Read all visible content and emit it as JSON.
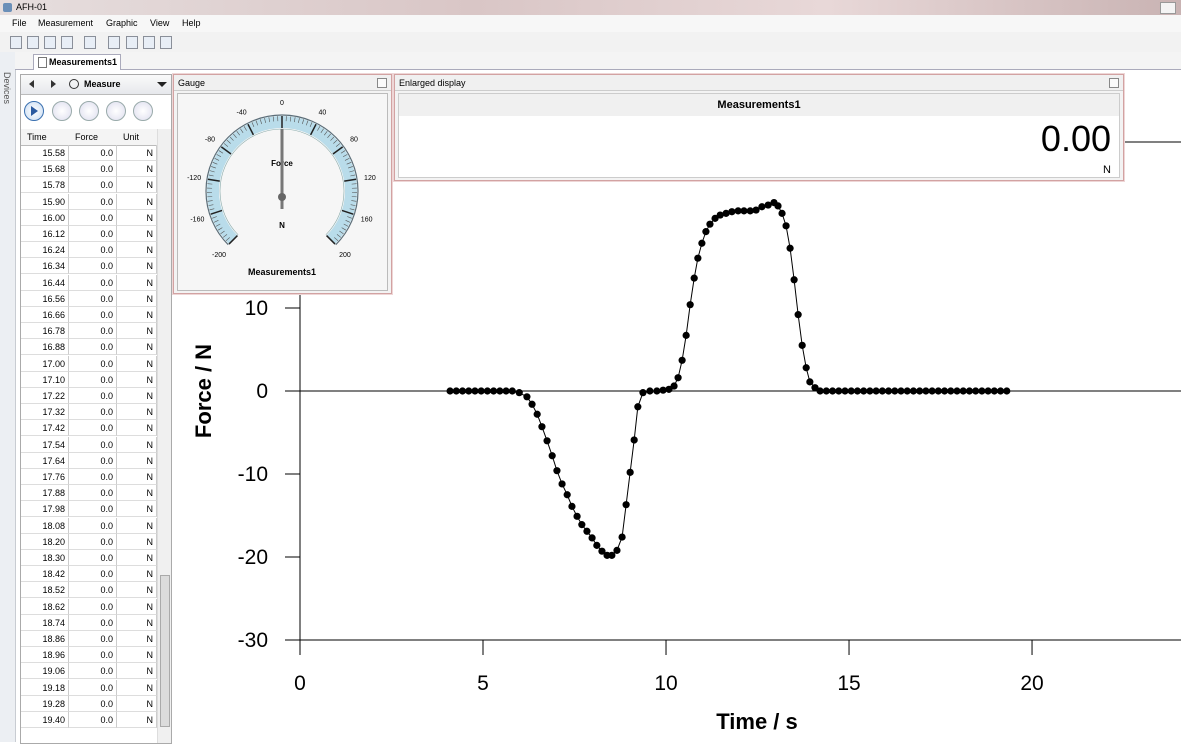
{
  "window": {
    "title": "AFH-01"
  },
  "menu": [
    "File",
    "Measurement",
    "Graphic",
    "View",
    "Help"
  ],
  "sidebar": {
    "label": "Devices"
  },
  "tab": "Measurements1",
  "panel": {
    "mode": "Measure",
    "columns": [
      "Time",
      "Force",
      "Unit"
    ],
    "rows": [
      [
        "15.58",
        "0.0",
        "N"
      ],
      [
        "15.68",
        "0.0",
        "N"
      ],
      [
        "15.78",
        "0.0",
        "N"
      ],
      [
        "15.90",
        "0.0",
        "N"
      ],
      [
        "16.00",
        "0.0",
        "N"
      ],
      [
        "16.12",
        "0.0",
        "N"
      ],
      [
        "16.24",
        "0.0",
        "N"
      ],
      [
        "16.34",
        "0.0",
        "N"
      ],
      [
        "16.44",
        "0.0",
        "N"
      ],
      [
        "16.56",
        "0.0",
        "N"
      ],
      [
        "16.66",
        "0.0",
        "N"
      ],
      [
        "16.78",
        "0.0",
        "N"
      ],
      [
        "16.88",
        "0.0",
        "N"
      ],
      [
        "17.00",
        "0.0",
        "N"
      ],
      [
        "17.10",
        "0.0",
        "N"
      ],
      [
        "17.22",
        "0.0",
        "N"
      ],
      [
        "17.32",
        "0.0",
        "N"
      ],
      [
        "17.42",
        "0.0",
        "N"
      ],
      [
        "17.54",
        "0.0",
        "N"
      ],
      [
        "17.64",
        "0.0",
        "N"
      ],
      [
        "17.76",
        "0.0",
        "N"
      ],
      [
        "17.88",
        "0.0",
        "N"
      ],
      [
        "17.98",
        "0.0",
        "N"
      ],
      [
        "18.08",
        "0.0",
        "N"
      ],
      [
        "18.20",
        "0.0",
        "N"
      ],
      [
        "18.30",
        "0.0",
        "N"
      ],
      [
        "18.42",
        "0.0",
        "N"
      ],
      [
        "18.52",
        "0.0",
        "N"
      ],
      [
        "18.62",
        "0.0",
        "N"
      ],
      [
        "18.74",
        "0.0",
        "N"
      ],
      [
        "18.86",
        "0.0",
        "N"
      ],
      [
        "18.96",
        "0.0",
        "N"
      ],
      [
        "19.06",
        "0.0",
        "N"
      ],
      [
        "19.18",
        "0.0",
        "N"
      ],
      [
        "19.28",
        "0.0",
        "N"
      ],
      [
        "19.40",
        "0.0",
        "N"
      ]
    ]
  },
  "gauge": {
    "title": "Gauge",
    "ticks": [
      -200,
      -160,
      -120,
      -80,
      -40,
      0,
      40,
      80,
      120,
      160,
      200
    ],
    "label": "Force",
    "unit": "N",
    "name": "Measurements1"
  },
  "display": {
    "title": "Enlarged display",
    "name": "Measurements1",
    "value": "0.00",
    "unit": "N"
  },
  "chart_data": {
    "type": "line",
    "x_label": "Time / s",
    "y_label": "Force / N",
    "color": "#000000",
    "x": [
      4.1,
      4.27,
      4.44,
      4.61,
      4.78,
      4.95,
      5.12,
      5.29,
      5.46,
      5.63,
      5.8,
      5.99,
      6.2,
      6.34,
      6.48,
      6.61,
      6.75,
      6.89,
      7.02,
      7.16,
      7.3,
      7.43,
      7.57,
      7.7,
      7.84,
      7.98,
      8.11,
      8.25,
      8.39,
      8.52,
      8.66,
      8.8,
      8.91,
      9.02,
      9.13,
      9.23,
      9.37,
      9.56,
      9.75,
      9.92,
      10.08,
      10.22,
      10.33,
      10.44,
      10.55,
      10.66,
      10.77,
      10.87,
      10.98,
      11.09,
      11.2,
      11.34,
      11.48,
      11.64,
      11.8,
      11.97,
      12.13,
      12.3,
      12.46,
      12.62,
      12.79,
      12.95,
      13.06,
      13.17,
      13.28,
      13.39,
      13.5,
      13.61,
      13.72,
      13.83,
      13.93,
      14.07,
      14.21,
      14.38,
      14.55,
      14.72,
      14.89,
      15.06,
      15.23,
      15.4,
      15.57,
      15.74,
      15.91,
      16.08,
      16.25,
      16.42,
      16.59,
      16.76,
      16.93,
      17.1,
      17.27,
      17.44,
      17.61,
      17.78,
      17.95,
      18.12,
      18.29,
      18.46,
      18.63,
      18.8,
      18.97,
      19.14,
      19.31
    ],
    "values": [
      0,
      0,
      0,
      0,
      0,
      0,
      0,
      0,
      0,
      0,
      0,
      -0.2,
      -0.7,
      -1.6,
      -2.8,
      -4.3,
      -6.0,
      -7.8,
      -9.6,
      -11.2,
      -12.5,
      -13.9,
      -15.1,
      -16.1,
      -16.9,
      -17.7,
      -18.6,
      -19.3,
      -19.8,
      -19.8,
      -19.2,
      -17.6,
      -13.7,
      -9.8,
      -5.9,
      -1.9,
      -0.2,
      0,
      0,
      0.1,
      0.2,
      0.6,
      1.6,
      3.7,
      6.7,
      10.4,
      13.6,
      16.0,
      17.8,
      19.2,
      20.1,
      20.8,
      21.2,
      21.4,
      21.6,
      21.7,
      21.7,
      21.7,
      21.8,
      22.2,
      22.4,
      22.7,
      22.3,
      21.4,
      19.9,
      17.2,
      13.4,
      9.2,
      5.5,
      2.8,
      1.1,
      0.4,
      0,
      0,
      0,
      0,
      0,
      0,
      0,
      0,
      0,
      0,
      0,
      0,
      0,
      0,
      0,
      0,
      0,
      0,
      0,
      0,
      0,
      0,
      0,
      0,
      0,
      0,
      0,
      0,
      0,
      0,
      0
    ],
    "xlim": [
      0,
      24.07
    ],
    "xticks": [
      0,
      5,
      10,
      15,
      20
    ],
    "ylim": [
      -30,
      30
    ],
    "yticks": [
      -30,
      -20,
      -10,
      0,
      10
    ]
  }
}
